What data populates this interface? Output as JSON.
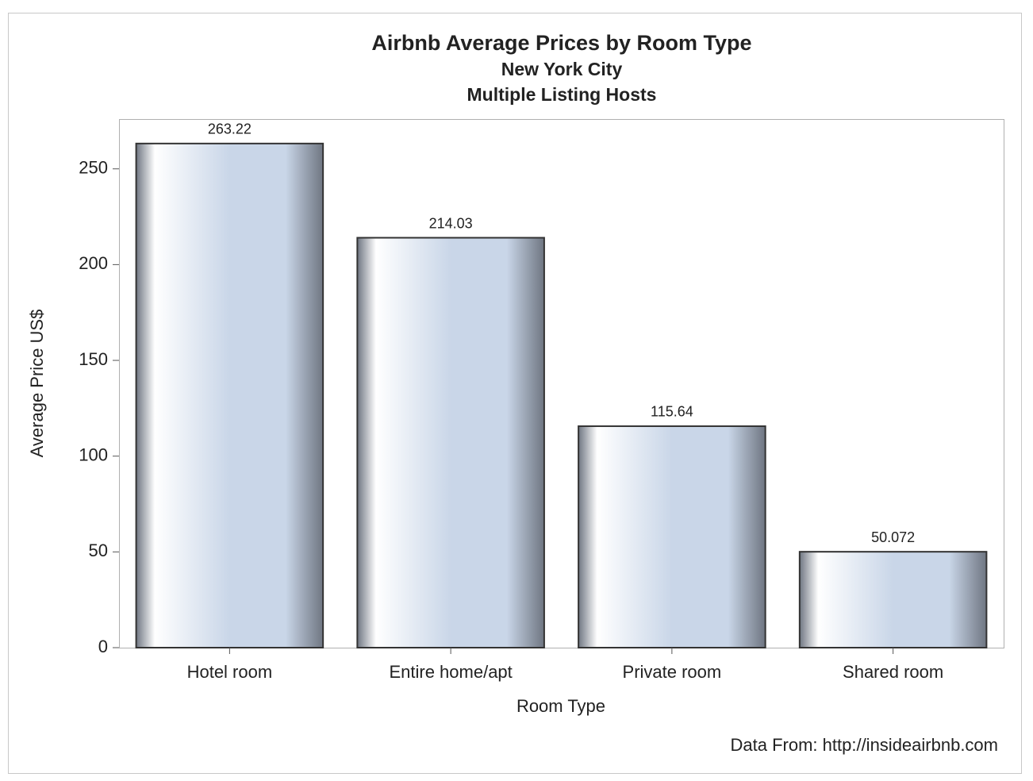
{
  "chart_data": {
    "type": "bar",
    "title": "Airbnb Average Prices by Room Type",
    "subtitles": [
      "New York City",
      "Multiple Listing Hosts"
    ],
    "x_label": "Room Type",
    "y_label": "Average Price US$",
    "footnote": "Data From: http://insideairbnb.com",
    "categories": [
      "Hotel room",
      "Entire home/apt",
      "Private room",
      "Shared room"
    ],
    "values": [
      263.22,
      214.03,
      115.64,
      50.072
    ],
    "color": "#c9d6e8",
    "ylim": [
      0,
      276
    ],
    "yticks": [
      0,
      50,
      100,
      150,
      200,
      250
    ],
    "grid": false
  }
}
